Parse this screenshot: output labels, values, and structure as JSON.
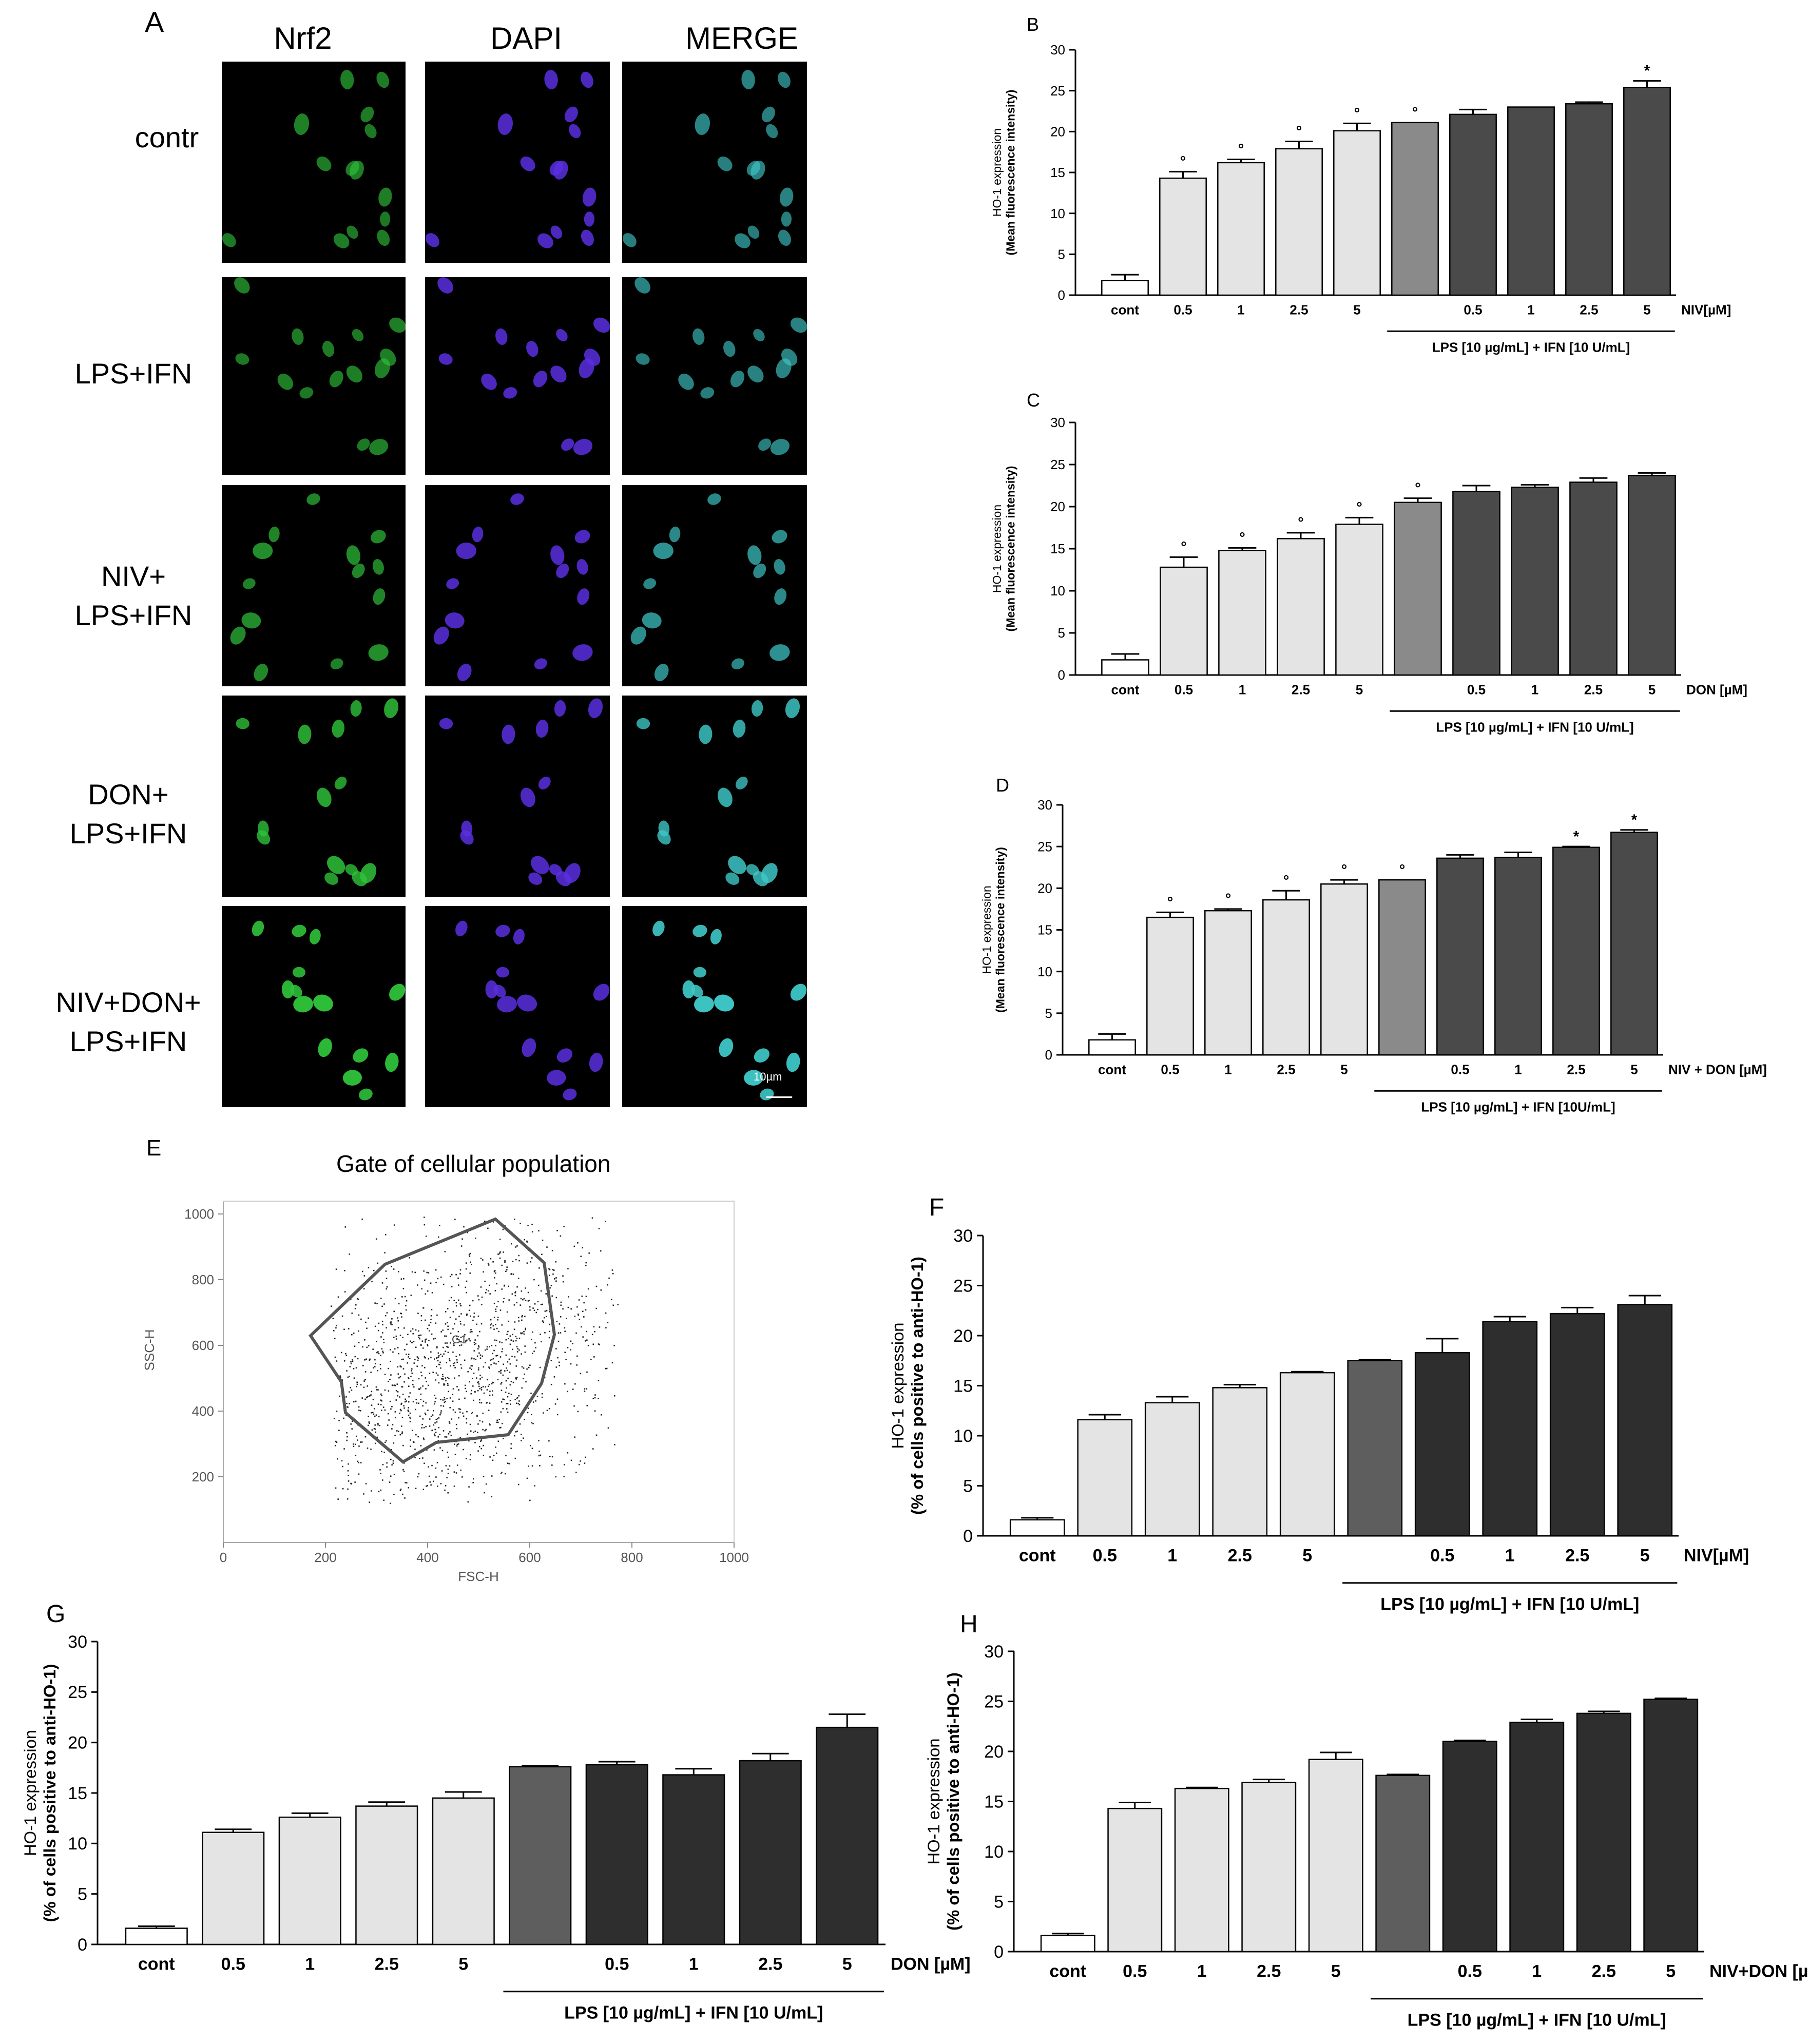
{
  "panel_a": {
    "letter": "A",
    "columns": [
      "Nrf2",
      "DAPI",
      "MERGE"
    ],
    "rows": [
      "contr",
      "LPS+IFN",
      "NIV+\nLPS+IFN",
      "DON+\nLPS+IFN",
      "NIV+DON+\nLPS+IFN"
    ],
    "scale_bar": "10µm"
  },
  "panel_e": {
    "letter": "E",
    "title": "Gate of cellular population",
    "gate_label": "G1",
    "xlabel": "FSC-H",
    "ylabel": "SSC-H",
    "x_ticks": [
      "0",
      "200",
      "400",
      "600",
      "800",
      "1000"
    ],
    "y_ticks": [
      "200",
      "400",
      "600",
      "800",
      "1000"
    ]
  },
  "colors": {
    "cont": "#ffffff",
    "treatment_light": "#e4e4e4",
    "lps_mid": "#8a8a8a",
    "combo_dark": "#4a4a4a",
    "lps_flow": "#5e5e5e",
    "combo_flow": "#2e2e2e",
    "nrf2_green": "#2fc23a",
    "dapi_blue": "#5a2fe0",
    "merge_cyan": "#3fc8c8"
  },
  "chart_data": [
    {
      "id": "B",
      "letter": "B",
      "type": "bar",
      "ylabel": "HO-1 expression",
      "ylabel2": "(Mean fluorescence intensity)",
      "ylim": [
        0,
        30
      ],
      "yticks": [
        "0",
        "5",
        "10",
        "15",
        "20",
        "25",
        "30"
      ],
      "categories": [
        "cont",
        "0.5",
        "1",
        "2.5",
        "5",
        "",
        "0.5",
        "1",
        "2.5",
        "5"
      ],
      "values": [
        1.8,
        14.3,
        16.2,
        17.9,
        20.1,
        21.1,
        22.1,
        23.0,
        23.4,
        25.4
      ],
      "errors": [
        0.7,
        0.8,
        0.4,
        0.9,
        0.9,
        0.0,
        0.6,
        0.0,
        0.2,
        0.8
      ],
      "groups": [
        "cont",
        "light",
        "light",
        "light",
        "light",
        "mid",
        "dark",
        "dark",
        "dark",
        "dark"
      ],
      "marks": [
        "",
        "°",
        "°",
        "°",
        "°",
        "°",
        "",
        "",
        "",
        "*"
      ],
      "unit_label": "NIV[µM]",
      "lps_label": "LPS [10 µg/mL] + IFN [10 U/mL]"
    },
    {
      "id": "C",
      "letter": "C",
      "type": "bar",
      "ylabel": "HO-1 expression",
      "ylabel2": "(Mean fluorescence intensity)",
      "ylim": [
        0,
        30
      ],
      "yticks": [
        "0",
        "5",
        "10",
        "15",
        "20",
        "25",
        "30"
      ],
      "categories": [
        "cont",
        "0.5",
        "1",
        "2.5",
        "5",
        "",
        "0.5",
        "1",
        "2.5",
        "5"
      ],
      "values": [
        1.8,
        12.8,
        14.8,
        16.2,
        17.9,
        20.5,
        21.8,
        22.3,
        22.9,
        23.7
      ],
      "errors": [
        0.7,
        1.2,
        0.3,
        0.7,
        0.8,
        0.5,
        0.7,
        0.3,
        0.5,
        0.3
      ],
      "groups": [
        "cont",
        "light",
        "light",
        "light",
        "light",
        "mid",
        "dark",
        "dark",
        "dark",
        "dark"
      ],
      "marks": [
        "",
        "°",
        "°",
        "°",
        "°",
        "°",
        "",
        "",
        "",
        ""
      ],
      "unit_label": "DON [µM]",
      "lps_label": "LPS [10 µg/mL] + IFN [10 U/mL]"
    },
    {
      "id": "D",
      "letter": "D",
      "type": "bar",
      "ylabel": "HO-1 expression",
      "ylabel2": "(Mean fluorescence intensity)",
      "ylim": [
        0,
        30
      ],
      "yticks": [
        "0",
        "5",
        "10",
        "15",
        "20",
        "25",
        "30"
      ],
      "categories": [
        "cont",
        "0.5",
        "1",
        "2.5",
        "5",
        "",
        "0.5",
        "1",
        "2.5",
        "5"
      ],
      "values": [
        1.8,
        16.5,
        17.3,
        18.6,
        20.5,
        21.0,
        23.6,
        23.7,
        24.9,
        26.7
      ],
      "errors": [
        0.7,
        0.6,
        0.2,
        1.1,
        0.5,
        0.0,
        0.4,
        0.6,
        0.1,
        0.3
      ],
      "groups": [
        "cont",
        "light",
        "light",
        "light",
        "light",
        "mid",
        "dark",
        "dark",
        "dark",
        "dark"
      ],
      "marks": [
        "",
        "°",
        "°",
        "°",
        "°",
        "°",
        "",
        "",
        "*",
        "*"
      ],
      "unit_label": "NIV + DON [µM]",
      "lps_label": "LPS [10 µg/mL] + IFN [10U/mL]"
    },
    {
      "id": "F",
      "letter": "F",
      "type": "bar",
      "ylabel": "HO-1 expression",
      "ylabel2": "(% of cells positive to anti-HO-1)",
      "ylim": [
        0,
        30
      ],
      "yticks": [
        "0",
        "5",
        "10",
        "15",
        "20",
        "25",
        "30"
      ],
      "categories": [
        "cont",
        "0.5",
        "1",
        "2.5",
        "5",
        "",
        "0.5",
        "1",
        "2.5",
        "5"
      ],
      "values": [
        1.6,
        11.6,
        13.3,
        14.8,
        16.3,
        17.5,
        18.3,
        21.4,
        22.2,
        23.1
      ],
      "errors": [
        0.2,
        0.5,
        0.6,
        0.3,
        0.1,
        0.1,
        1.4,
        0.5,
        0.6,
        0.9
      ],
      "groups": [
        "cont",
        "light",
        "light",
        "light",
        "light",
        "mid",
        "dark",
        "dark",
        "dark",
        "dark"
      ],
      "marks": [
        "",
        "",
        "",
        "",
        "",
        "",
        "",
        "",
        "",
        ""
      ],
      "unit_label": "NIV[µM]",
      "lps_label": "LPS [10 µg/mL] + IFN [10 U/mL]"
    },
    {
      "id": "G",
      "letter": "G",
      "type": "bar",
      "ylabel": "HO-1 expression",
      "ylabel2": "(% of cells positive to anti-HO-1)",
      "ylim": [
        0,
        30
      ],
      "yticks": [
        "0",
        "5",
        "10",
        "15",
        "20",
        "25",
        "30"
      ],
      "categories": [
        "cont",
        "0.5",
        "1",
        "2.5",
        "5",
        "",
        "0.5",
        "1",
        "2.5",
        "5"
      ],
      "values": [
        1.6,
        11.1,
        12.6,
        13.7,
        14.5,
        17.6,
        17.8,
        16.8,
        18.2,
        21.5
      ],
      "errors": [
        0.2,
        0.3,
        0.4,
        0.4,
        0.6,
        0.1,
        0.3,
        0.6,
        0.7,
        1.3
      ],
      "groups": [
        "cont",
        "light",
        "light",
        "light",
        "light",
        "mid",
        "dark",
        "dark",
        "dark",
        "dark"
      ],
      "marks": [
        "",
        "",
        "",
        "",
        "",
        "",
        "",
        "",
        "",
        ""
      ],
      "unit_label": "DON [µM]",
      "lps_label": "LPS [10 µg/mL] + IFN [10 U/mL]"
    },
    {
      "id": "H",
      "letter": "H",
      "type": "bar",
      "ylabel": "HO-1 expression",
      "ylabel2": "(% of cells positive to anti-HO-1)",
      "ylim": [
        0,
        30
      ],
      "yticks": [
        "0",
        "5",
        "10",
        "15",
        "20",
        "25",
        "30"
      ],
      "categories": [
        "cont",
        "0.5",
        "1",
        "2.5",
        "5",
        "",
        "0.5",
        "1",
        "2.5",
        "5"
      ],
      "values": [
        1.6,
        14.3,
        16.3,
        16.9,
        19.2,
        17.6,
        21.0,
        22.9,
        23.8,
        25.2
      ],
      "errors": [
        0.2,
        0.6,
        0.1,
        0.3,
        0.7,
        0.1,
        0.1,
        0.3,
        0.2,
        0.1
      ],
      "groups": [
        "cont",
        "light",
        "light",
        "light",
        "light",
        "mid",
        "dark",
        "dark",
        "dark",
        "dark"
      ],
      "marks": [
        "",
        "",
        "",
        "",
        "",
        "",
        "",
        "",
        "",
        ""
      ],
      "unit_label": "NIV+DON [µM]",
      "lps_label": "LPS [10 µg/mL] + IFN [10 U/mL]"
    }
  ]
}
